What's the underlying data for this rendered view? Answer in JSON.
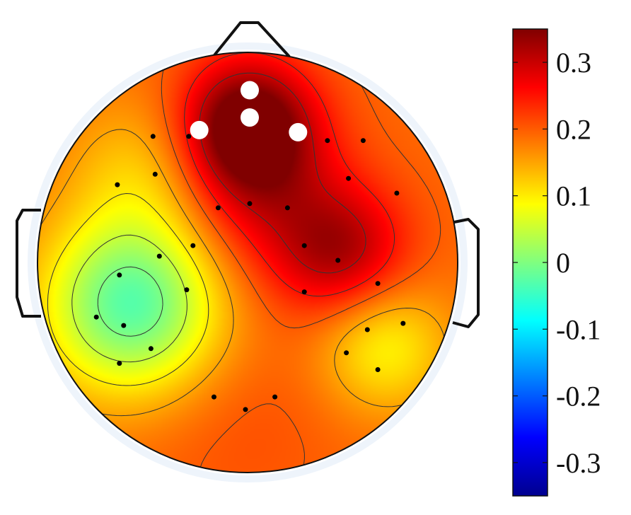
{
  "chart_data": {
    "type": "heatmap",
    "title": "",
    "colormap": "jet",
    "colorbar": {
      "range": [
        -0.35,
        0.35
      ],
      "ticks": [
        {
          "value": 0.3,
          "label": "0.3"
        },
        {
          "value": 0.2,
          "label": "0.2"
        },
        {
          "value": 0.1,
          "label": "0.1"
        },
        {
          "value": 0,
          "label": "0"
        },
        {
          "value": -0.1,
          "label": "-0.1"
        },
        {
          "value": -0.2,
          "label": "-0.2"
        },
        {
          "value": -0.3,
          "label": "-0.3"
        }
      ]
    },
    "electrodes": [
      {
        "x": -0.45,
        "y": 0.6
      },
      {
        "x": -0.28,
        "y": 0.6
      },
      {
        "x": -0.62,
        "y": 0.37
      },
      {
        "x": -0.44,
        "y": 0.42
      },
      {
        "x": -0.14,
        "y": 0.26
      },
      {
        "x": 0.01,
        "y": 0.28
      },
      {
        "x": 0.19,
        "y": 0.26
      },
      {
        "x": 0.38,
        "y": 0.58
      },
      {
        "x": 0.55,
        "y": 0.58
      },
      {
        "x": 0.48,
        "y": 0.4
      },
      {
        "x": 0.71,
        "y": 0.33
      },
      {
        "x": -0.26,
        "y": 0.08
      },
      {
        "x": -0.42,
        "y": 0.03
      },
      {
        "x": -0.61,
        "y": -0.06
      },
      {
        "x": -0.29,
        "y": -0.13
      },
      {
        "x": 0.27,
        "y": 0.08
      },
      {
        "x": 0.43,
        "y": 0.01
      },
      {
        "x": 0.62,
        "y": -0.1
      },
      {
        "x": 0.27,
        "y": -0.14
      },
      {
        "x": -0.72,
        "y": -0.26
      },
      {
        "x": -0.59,
        "y": -0.3
      },
      {
        "x": -0.46,
        "y": -0.41
      },
      {
        "x": -0.61,
        "y": -0.48
      },
      {
        "x": 0.57,
        "y": -0.32
      },
      {
        "x": 0.74,
        "y": -0.29
      },
      {
        "x": 0.47,
        "y": -0.43
      },
      {
        "x": 0.62,
        "y": -0.51
      },
      {
        "x": -0.16,
        "y": -0.64
      },
      {
        "x": -0.01,
        "y": -0.7
      },
      {
        "x": 0.13,
        "y": -0.64
      }
    ],
    "highlighted_electrodes": [
      {
        "x": 0.01,
        "y": 0.82
      },
      {
        "x": -0.23,
        "y": 0.63
      },
      {
        "x": 0.01,
        "y": 0.69
      },
      {
        "x": 0.24,
        "y": 0.62
      }
    ],
    "sources": [
      {
        "x": 0.0,
        "y": 0.65,
        "amp": 0.2,
        "sigma": 0.22
      },
      {
        "x": 0.08,
        "y": 0.3,
        "amp": 0.08,
        "sigma": 0.28
      },
      {
        "x": 0.45,
        "y": 0.05,
        "amp": 0.12,
        "sigma": 0.22
      },
      {
        "x": -0.55,
        "y": -0.2,
        "amp": -0.22,
        "sigma": 0.3
      },
      {
        "x": -0.5,
        "y": 0.45,
        "amp": -0.06,
        "sigma": 0.25
      },
      {
        "x": 0.65,
        "y": -0.4,
        "amp": -0.1,
        "sigma": 0.22
      },
      {
        "x": -0.05,
        "y": -0.75,
        "amp": 0.02,
        "sigma": 0.35
      }
    ],
    "baseline": 0.19,
    "contour_levels": [
      -0.05,
      0.0,
      0.05,
      0.1,
      0.15,
      0.2,
      0.25,
      0.3
    ]
  }
}
